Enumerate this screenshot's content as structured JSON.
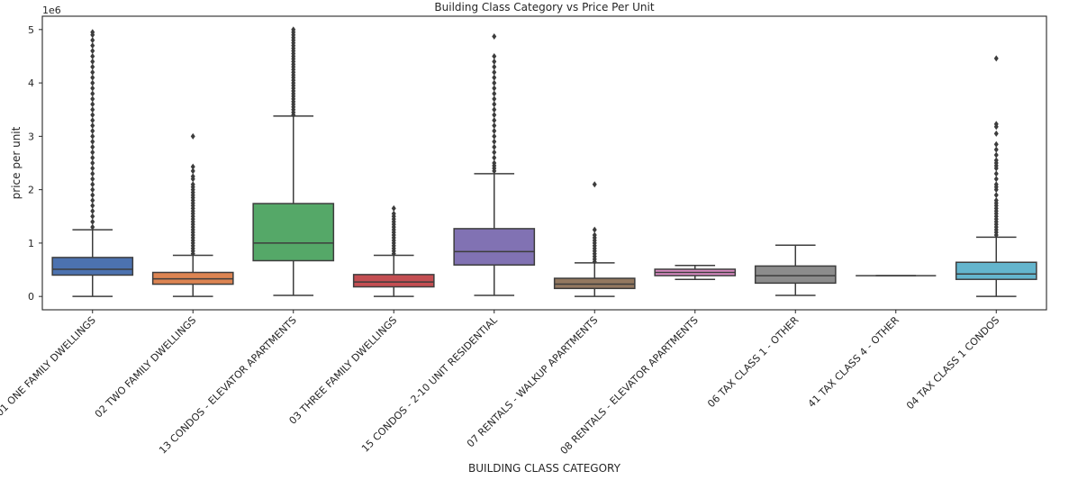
{
  "chart_data": {
    "type": "box",
    "title": "Building Class Category vs Price Per Unit",
    "xlabel": "BUILDING CLASS CATEGORY",
    "ylabel": "price per unit",
    "offset_label": "1e6",
    "ylim": [
      -250000,
      5250000
    ],
    "yticks": [
      0,
      1,
      2,
      3,
      4,
      5
    ],
    "y_multiplier": 1000000,
    "grid": false,
    "categories": [
      "01 ONE FAMILY DWELLINGS",
      "02 TWO FAMILY DWELLINGS",
      "13 CONDOS - ELEVATOR APARTMENTS",
      "03 THREE FAMILY DWELLINGS",
      "15 CONDOS - 2-10 UNIT RESIDENTIAL",
      "07 RENTALS - WALKUP APARTMENTS",
      "08 RENTALS - ELEVATOR APARTMENTS",
      "06 TAX CLASS 1 - OTHER",
      "41 TAX CLASS 4 - OTHER",
      "04 TAX CLASS 1 CONDOS"
    ],
    "colors": [
      "#4c72b0",
      "#dd8452",
      "#55a868",
      "#c44e52",
      "#8172b3",
      "#937860",
      "#da8bc3",
      "#8c8c8c",
      "#ccb974",
      "#64b5cd"
    ],
    "boxes": [
      {
        "whisker_low": 0,
        "q1": 400000,
        "median": 510000,
        "q3": 730000,
        "whisker_high": 1250000,
        "outlier_max": 4950000,
        "outliers": [
          4950000,
          4900000,
          4800000,
          4700000,
          4600000,
          4500000,
          4400000,
          4300000,
          4200000,
          4100000,
          4000000,
          3900000,
          3800000,
          3700000,
          3600000,
          3500000,
          3400000,
          3300000,
          3200000,
          3100000,
          3000000,
          2900000,
          2800000,
          2700000,
          2600000,
          2500000,
          2400000,
          2300000,
          2200000,
          2100000,
          2000000,
          1900000,
          1800000,
          1700000,
          1600000,
          1500000,
          1400000,
          1300000
        ]
      },
      {
        "whisker_low": 0,
        "q1": 230000,
        "median": 330000,
        "q3": 450000,
        "whisker_high": 770000,
        "outlier_max": 3000000,
        "outliers": [
          3000000,
          2430000,
          2350000,
          2250000,
          2200000,
          2100000,
          2050000,
          2000000,
          1950000,
          1900000,
          1850000,
          1800000,
          1750000,
          1700000,
          1650000,
          1600000,
          1550000,
          1500000,
          1450000,
          1400000,
          1350000,
          1300000,
          1250000,
          1200000,
          1150000,
          1100000,
          1050000,
          1000000,
          950000,
          900000,
          850000,
          800000
        ]
      },
      {
        "whisker_low": 20000,
        "q1": 670000,
        "median": 1000000,
        "q3": 1740000,
        "whisker_high": 3380000,
        "outlier_max": 5000000,
        "outliers": [
          5000000,
          4950000,
          4900000,
          4850000,
          4800000,
          4750000,
          4700000,
          4650000,
          4600000,
          4550000,
          4500000,
          4450000,
          4400000,
          4350000,
          4300000,
          4250000,
          4200000,
          4150000,
          4100000,
          4050000,
          4000000,
          3950000,
          3900000,
          3850000,
          3800000,
          3750000,
          3700000,
          3650000,
          3600000,
          3550000,
          3500000,
          3450000,
          3400000
        ]
      },
      {
        "whisker_low": 0,
        "q1": 180000,
        "median": 270000,
        "q3": 410000,
        "whisker_high": 770000,
        "outlier_max": 1650000,
        "outliers": [
          1650000,
          1550000,
          1500000,
          1450000,
          1400000,
          1350000,
          1300000,
          1250000,
          1200000,
          1150000,
          1100000,
          1050000,
          1000000,
          950000,
          900000,
          850000,
          800000
        ]
      },
      {
        "whisker_low": 20000,
        "q1": 590000,
        "median": 840000,
        "q3": 1270000,
        "whisker_high": 2300000,
        "outlier_max": 4870000,
        "outliers": [
          4870000,
          4500000,
          4400000,
          4300000,
          4200000,
          4100000,
          4000000,
          3900000,
          3800000,
          3700000,
          3600000,
          3500000,
          3400000,
          3300000,
          3200000,
          3100000,
          3000000,
          2900000,
          2800000,
          2700000,
          2600000,
          2500000,
          2450000,
          2400000,
          2350000
        ]
      },
      {
        "whisker_low": 0,
        "q1": 150000,
        "median": 230000,
        "q3": 340000,
        "whisker_high": 630000,
        "outlier_max": 2100000,
        "outliers": [
          2100000,
          1250000,
          1150000,
          1100000,
          1050000,
          1000000,
          950000,
          900000,
          850000,
          800000,
          750000,
          700000,
          650000
        ]
      },
      {
        "whisker_low": 320000,
        "q1": 390000,
        "median": 450000,
        "q3": 510000,
        "whisker_high": 580000,
        "outlier_max": 580000,
        "outliers": []
      },
      {
        "whisker_low": 20000,
        "q1": 250000,
        "median": 390000,
        "q3": 570000,
        "whisker_high": 960000,
        "outlier_max": 960000,
        "outliers": []
      },
      {
        "whisker_low": 390000,
        "q1": 390000,
        "median": 390000,
        "q3": 390000,
        "whisker_high": 390000,
        "outlier_max": 390000,
        "outliers": []
      },
      {
        "whisker_low": 0,
        "q1": 320000,
        "median": 420000,
        "q3": 640000,
        "whisker_high": 1110000,
        "outlier_max": 4460000,
        "outliers": [
          4460000,
          3230000,
          3180000,
          3050000,
          2850000,
          2750000,
          2650000,
          2550000,
          2500000,
          2450000,
          2400000,
          2300000,
          2200000,
          2100000,
          2050000,
          2000000,
          1900000,
          1800000,
          1750000,
          1700000,
          1650000,
          1600000,
          1550000,
          1500000,
          1450000,
          1400000,
          1350000,
          1300000,
          1250000,
          1200000,
          1150000
        ]
      }
    ]
  }
}
